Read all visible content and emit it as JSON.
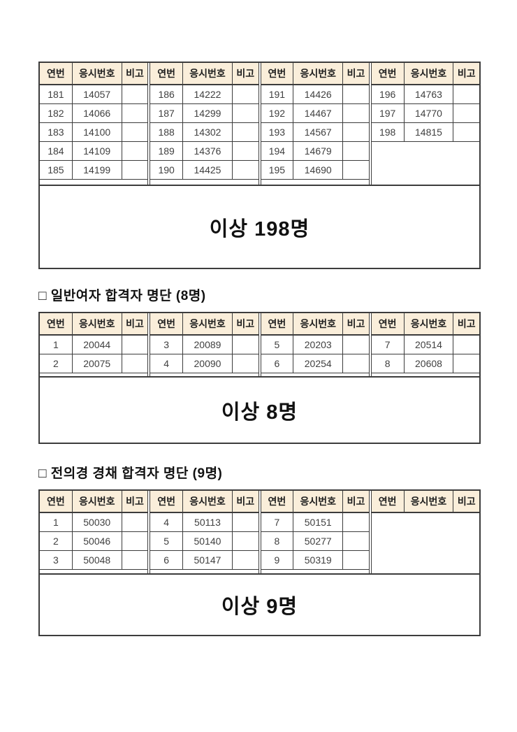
{
  "page": {
    "background": "#ffffff"
  },
  "colors": {
    "header_bg": "#faeeda",
    "table_border": "#3c3c3c",
    "header_text": "#1f1f1f",
    "cell_text": "#404040",
    "heading_text": "#111111",
    "total_text": "#111111"
  },
  "table": {
    "column_headers": [
      "연번",
      "응시번호",
      "비고"
    ]
  },
  "sections": [
    {
      "heading": "",
      "total_label": "이상 198명",
      "groups": [
        [
          [
            "181",
            "14057",
            ""
          ],
          [
            "182",
            "14066",
            ""
          ],
          [
            "183",
            "14100",
            ""
          ],
          [
            "184",
            "14109",
            ""
          ],
          [
            "185",
            "14199",
            ""
          ]
        ],
        [
          [
            "186",
            "14222",
            ""
          ],
          [
            "187",
            "14299",
            ""
          ],
          [
            "188",
            "14302",
            ""
          ],
          [
            "189",
            "14376",
            ""
          ],
          [
            "190",
            "14425",
            ""
          ]
        ],
        [
          [
            "191",
            "14426",
            ""
          ],
          [
            "192",
            "14467",
            ""
          ],
          [
            "193",
            "14567",
            ""
          ],
          [
            "194",
            "14679",
            ""
          ],
          [
            "195",
            "14690",
            ""
          ]
        ],
        [
          [
            "196",
            "14763",
            ""
          ],
          [
            "197",
            "14770",
            ""
          ],
          [
            "198",
            "14815",
            ""
          ]
        ]
      ]
    },
    {
      "heading": "□ 일반여자 합격자 명단 (8명)",
      "total_label": "이상 8명",
      "groups": [
        [
          [
            "1",
            "20044",
            ""
          ],
          [
            "2",
            "20075",
            ""
          ]
        ],
        [
          [
            "3",
            "20089",
            ""
          ],
          [
            "4",
            "20090",
            ""
          ]
        ],
        [
          [
            "5",
            "20203",
            ""
          ],
          [
            "6",
            "20254",
            ""
          ]
        ],
        [
          [
            "7",
            "20514",
            ""
          ],
          [
            "8",
            "20608",
            ""
          ]
        ]
      ]
    },
    {
      "heading": "□ 전의경 경채 합격자 명단 (9명)",
      "total_label": "이상 9명",
      "groups": [
        [
          [
            "1",
            "50030",
            ""
          ],
          [
            "2",
            "50046",
            ""
          ],
          [
            "3",
            "50048",
            ""
          ]
        ],
        [
          [
            "4",
            "50113",
            ""
          ],
          [
            "5",
            "50140",
            ""
          ],
          [
            "6",
            "50147",
            ""
          ]
        ],
        [
          [
            "7",
            "50151",
            ""
          ],
          [
            "8",
            "50277",
            ""
          ],
          [
            "9",
            "50319",
            ""
          ]
        ],
        []
      ]
    }
  ]
}
